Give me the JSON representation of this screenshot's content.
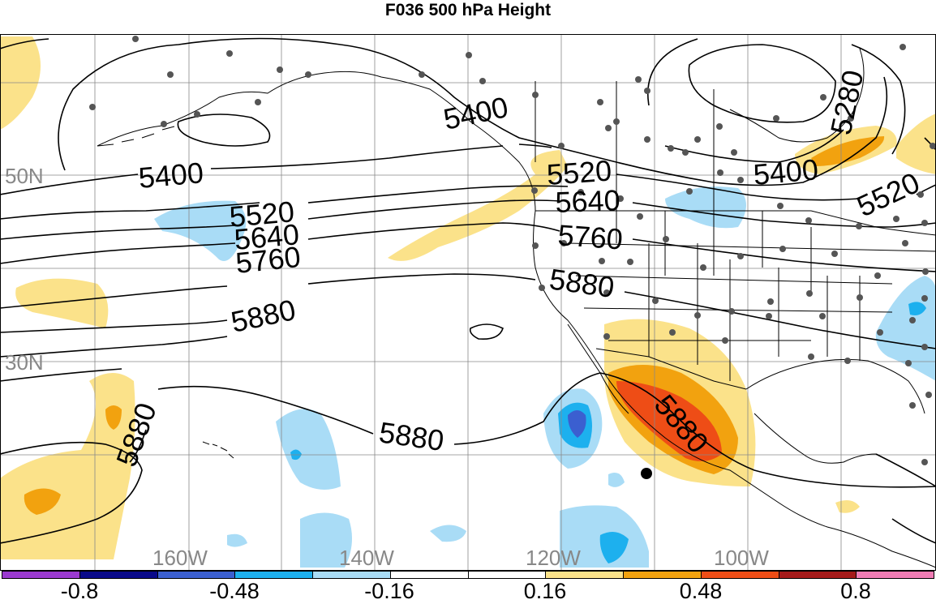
{
  "title": "F036 500 hPa Height",
  "contour_labels": [
    "5400",
    "5400",
    "5520",
    "5520",
    "5640",
    "5640",
    "5760",
    "5760",
    "5880",
    "5880",
    "5880",
    "5880",
    "5880",
    "5280",
    "5400",
    "5520"
  ],
  "lat_labels": [
    "50N",
    "30N"
  ],
  "lon_labels": [
    "160W",
    "140W",
    "120W",
    "100W"
  ],
  "colorbar": {
    "colors": [
      "#9b3ad0",
      "#0a0a8a",
      "#3b5fd0",
      "#1db0ee",
      "#a9dcf6",
      "#ffffff",
      "#ffffff",
      "#fbe28a",
      "#f2a20f",
      "#ee4d16",
      "#a51a1a",
      "#f07cb4"
    ],
    "tick_labels": [
      "-0.8",
      "-0.48",
      "-0.16",
      "0.16",
      "0.48",
      "0.8"
    ]
  },
  "colors": {
    "blue_light": "#a9dcf6",
    "blue_mid": "#1db0ee",
    "blue_dark": "#3b5fd0",
    "yellow": "#fbe28a",
    "orange": "#f2a20f",
    "red": "#ee4d16",
    "grid": "#888888",
    "map": "#000000",
    "label_gray": "#777777"
  }
}
